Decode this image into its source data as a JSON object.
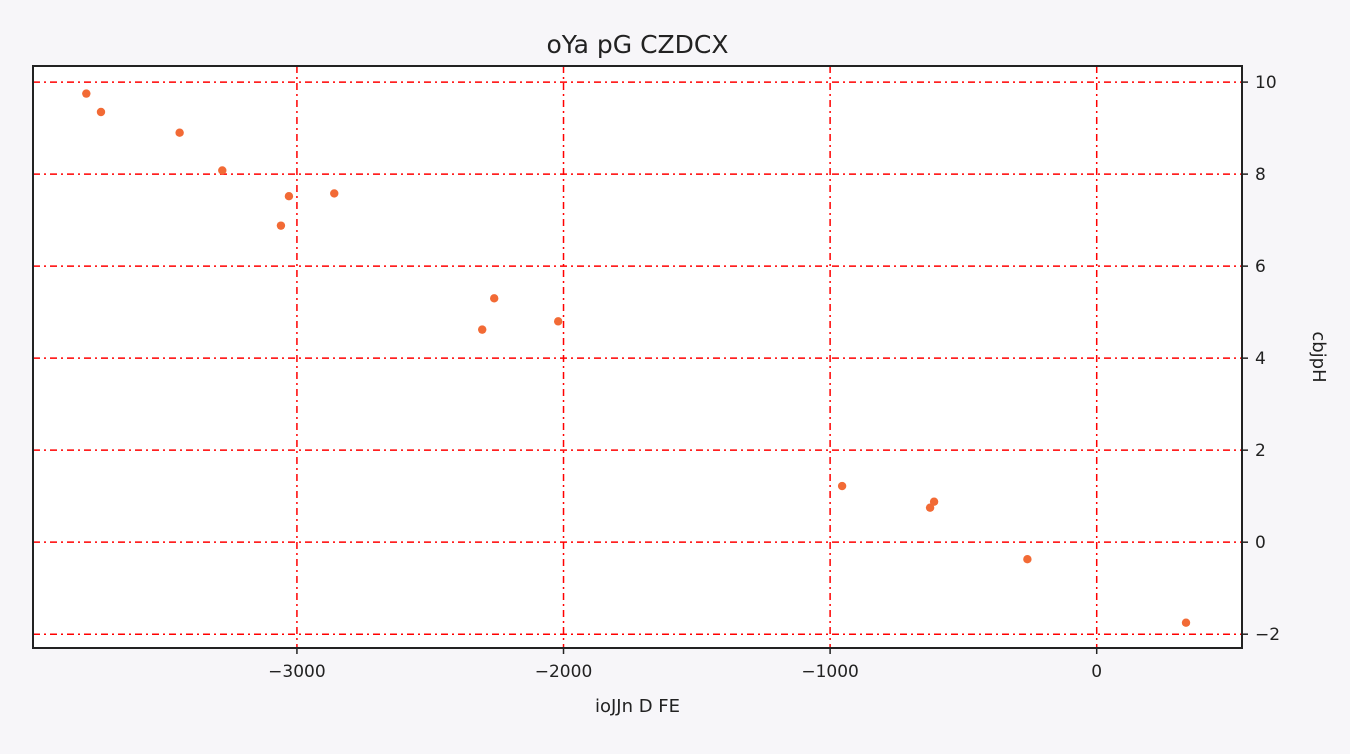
{
  "chart_data": {
    "type": "scatter",
    "title": "oYa pG CZDCX",
    "xlabel": "ioJJn D  FE",
    "ylabel": "cbjpH",
    "xlim": [
      -3990,
      545
    ],
    "ylim": [
      -2.3,
      10.35
    ],
    "xticks": [
      -3000,
      -2000,
      -1000,
      0
    ],
    "yticks": [
      -2,
      0,
      2,
      4,
      6,
      8,
      10
    ],
    "xtick_labels": [
      "−3000",
      "−2000",
      "−1000",
      "0"
    ],
    "ytick_labels": [
      "−2",
      "0",
      "2",
      "4",
      "6",
      "8",
      "10"
    ],
    "y_axis_side": "right",
    "grid": true,
    "grid_style": "dash-dot",
    "colors": {
      "points": "#f26a35",
      "grid": "#ff0000",
      "axes": "#222222",
      "plot_background": "#ffffff",
      "page_background": "#f7f6f9"
    },
    "series": [
      {
        "x": [
          -3790,
          -3735,
          -3440,
          -3280,
          -3030,
          -3060,
          -2860,
          -2260,
          -2305,
          -2020,
          -955,
          -625,
          -610,
          -260,
          335
        ],
        "y": [
          9.75,
          9.35,
          8.9,
          8.08,
          7.52,
          6.88,
          7.58,
          5.3,
          4.62,
          4.8,
          1.22,
          0.75,
          0.88,
          -0.37,
          -1.75
        ]
      }
    ]
  }
}
